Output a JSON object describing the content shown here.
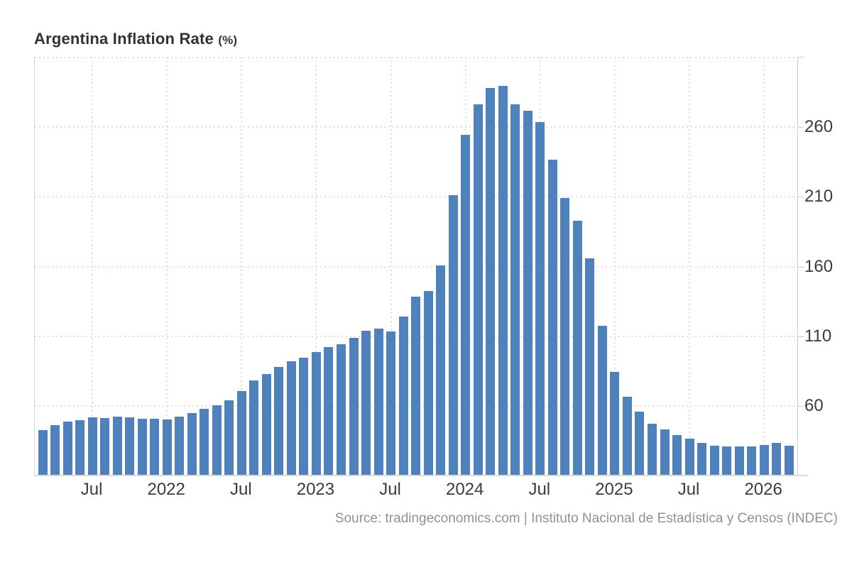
{
  "title": {
    "text": "Argentina Inflation Rate",
    "unit": "(%)"
  },
  "source": {
    "text": "Source: tradingeconomics.com | Instituto Nacional de Estadística y Censos (INDEC)"
  },
  "colors": {
    "bar": "#4f81bd",
    "grid": "#dedede",
    "axis_line": "#cccccc",
    "axis_label": "#3c3c3c",
    "title_text": "#323232",
    "source_text": "#919191"
  },
  "chart_data": {
    "type": "bar",
    "title": "Argentina Inflation Rate (%)",
    "xlabel": "",
    "ylabel": "",
    "grid": "dotted",
    "legend_position": "none",
    "ylim": [
      10.8,
      310.4
    ],
    "y_ticks": [
      60,
      110,
      160,
      210,
      260
    ],
    "x": [
      "2021-03",
      "2021-04",
      "2021-05",
      "2021-06",
      "2021-07",
      "2021-08",
      "2021-09",
      "2021-10",
      "2021-11",
      "2021-12",
      "2022-01",
      "2022-02",
      "2022-03",
      "2022-04",
      "2022-05",
      "2022-06",
      "2022-07",
      "2022-08",
      "2022-09",
      "2022-10",
      "2022-11",
      "2022-12",
      "2023-01",
      "2023-02",
      "2023-03",
      "2023-04",
      "2023-05",
      "2023-06",
      "2023-07",
      "2023-08",
      "2023-09",
      "2023-10",
      "2023-11",
      "2023-12",
      "2024-01",
      "2024-02",
      "2024-03",
      "2024-04",
      "2024-05",
      "2024-06",
      "2024-07",
      "2024-08",
      "2024-09",
      "2024-10",
      "2024-11",
      "2024-12",
      "2025-01",
      "2025-02",
      "2025-03",
      "2025-04",
      "2025-05",
      "2025-06",
      "2025-07",
      "2025-08",
      "2025-09",
      "2025-10",
      "2025-11",
      "2025-12",
      "2026-01",
      "2026-02",
      "2026-03"
    ],
    "values": [
      42.6,
      46.3,
      48.8,
      50.2,
      51.8,
      51.4,
      52.5,
      52.1,
      51.2,
      50.9,
      50.7,
      52.3,
      55.1,
      58.0,
      60.7,
      64.0,
      71.0,
      78.5,
      83.0,
      88.0,
      92.4,
      94.8,
      98.8,
      102.5,
      104.3,
      108.8,
      114.2,
      115.6,
      113.4,
      124.4,
      138.3,
      142.7,
      160.9,
      211.4,
      254.2,
      276.2,
      287.9,
      289.4,
      276.4,
      271.5,
      263.4,
      236.7,
      209.0,
      193.0,
      166.0,
      117.8,
      84.5,
      66.9,
      55.9,
      47.3,
      43.5,
      39.4,
      36.6,
      33.6,
      31.8,
      31.0,
      31.0,
      31.0,
      32.0,
      33.5,
      31.5
    ],
    "x_ticks": [
      {
        "index": 4,
        "label": "Jul"
      },
      {
        "index": 10,
        "label": "2022"
      },
      {
        "index": 16,
        "label": "Jul"
      },
      {
        "index": 22,
        "label": "2023"
      },
      {
        "index": 28,
        "label": "Jul"
      },
      {
        "index": 34,
        "label": "2024"
      },
      {
        "index": 40,
        "label": "Jul"
      },
      {
        "index": 46,
        "label": "2025"
      },
      {
        "index": 52,
        "label": "Jul"
      },
      {
        "index": 58,
        "label": "2026"
      }
    ]
  }
}
